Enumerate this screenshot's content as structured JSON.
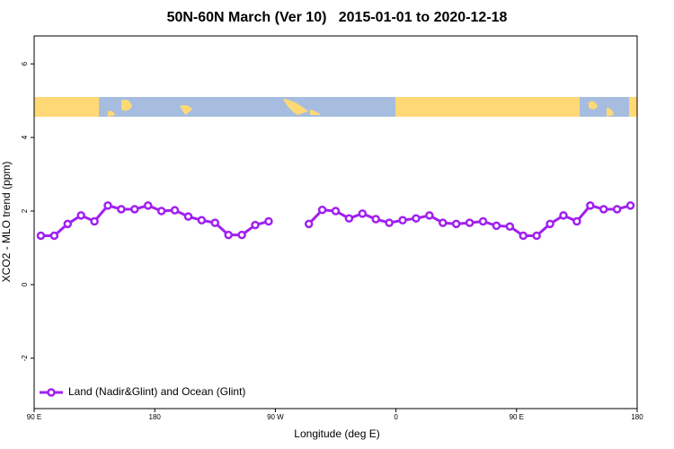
{
  "chart_data": {
    "type": "line",
    "title": "50N-60N March (Ver 10)   2015-01-01 to 2020-12-18",
    "x_label": "Longitude (deg E)",
    "y_label": "XCO2 - MLO trend (ppm)",
    "xlim": [
      90,
      540
    ],
    "xticks": [
      {
        "value": 90,
        "label": "90 E"
      },
      {
        "value": 180,
        "label": "180"
      },
      {
        "value": 270,
        "label": "90 W"
      },
      {
        "value": 360,
        "label": "0"
      },
      {
        "value": 450,
        "label": "90 E"
      },
      {
        "value": 540,
        "label": "180"
      }
    ],
    "ylim": [
      -3.37,
      6.76
    ],
    "yticks": [
      -2,
      0,
      2,
      4,
      6
    ],
    "legend": "bottom-left",
    "x": [
      95,
      105,
      115,
      125,
      135,
      145,
      155,
      165,
      175,
      185,
      195,
      205,
      215,
      225,
      235,
      245,
      255,
      265,
      275,
      285,
      295,
      305,
      315,
      325,
      335,
      345,
      355,
      365,
      375,
      385,
      395,
      405,
      415,
      425,
      435,
      445,
      455,
      465,
      475,
      485,
      495,
      505,
      515,
      525,
      535
    ],
    "series": [
      {
        "name": "Land (Nadir&Glint) and Ocean (Glint)",
        "color": "#a020f0",
        "values": [
          1.33,
          1.33,
          1.65,
          1.88,
          1.72,
          2.15,
          2.05,
          2.05,
          2.15,
          2.0,
          2.02,
          1.85,
          1.75,
          1.68,
          1.35,
          1.35,
          1.62,
          1.72,
          null,
          null,
          1.65,
          2.03,
          2.0,
          1.8,
          1.93,
          1.78,
          1.68,
          1.75,
          1.8,
          1.88,
          1.68,
          1.65,
          1.68,
          1.72,
          1.6,
          1.58,
          1.33,
          1.33,
          1.65,
          1.88,
          1.72,
          2.15,
          2.05,
          2.05,
          2.15
        ]
      }
    ]
  }
}
